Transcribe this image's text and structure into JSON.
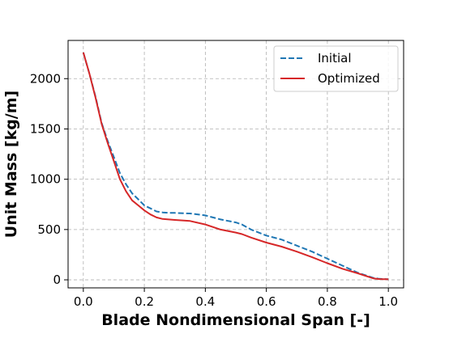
{
  "chart_data": {
    "type": "line",
    "xlabel": "Blade Nondimensional Span [-]",
    "ylabel": "Unit Mass [kg/m]",
    "xlim": [
      -0.05,
      1.05
    ],
    "ylim": [
      -80,
      2380
    ],
    "xticks": [
      0.0,
      0.2,
      0.4,
      0.6,
      0.8,
      1.0
    ],
    "xtick_labels": [
      "0.0",
      "0.2",
      "0.4",
      "0.6",
      "0.8",
      "1.0"
    ],
    "yticks": [
      0,
      500,
      1000,
      1500,
      2000
    ],
    "ytick_labels": [
      "0",
      "500",
      "1000",
      "1500",
      "2000"
    ],
    "grid": true,
    "legend_position": "top-right",
    "series": [
      {
        "name": "Initial",
        "color": "#1f77b4",
        "style": "dashed",
        "x": [
          0.0,
          0.02,
          0.04,
          0.06,
          0.08,
          0.1,
          0.12,
          0.14,
          0.16,
          0.18,
          0.2,
          0.22,
          0.24,
          0.26,
          0.28,
          0.3,
          0.35,
          0.4,
          0.45,
          0.5,
          0.52,
          0.55,
          0.6,
          0.65,
          0.7,
          0.75,
          0.8,
          0.85,
          0.9,
          0.95,
          0.97,
          1.0
        ],
        "y": [
          2260,
          2050,
          1820,
          1560,
          1380,
          1220,
          1060,
          950,
          860,
          800,
          740,
          710,
          680,
          670,
          665,
          665,
          660,
          640,
          600,
          570,
          550,
          500,
          440,
          400,
          340,
          280,
          210,
          140,
          70,
          20,
          10,
          5
        ]
      },
      {
        "name": "Optimized",
        "color": "#d62728",
        "style": "solid",
        "x": [
          0.0,
          0.02,
          0.04,
          0.06,
          0.08,
          0.1,
          0.12,
          0.14,
          0.16,
          0.18,
          0.2,
          0.22,
          0.24,
          0.26,
          0.28,
          0.3,
          0.35,
          0.4,
          0.45,
          0.5,
          0.52,
          0.55,
          0.6,
          0.65,
          0.7,
          0.75,
          0.8,
          0.85,
          0.9,
          0.95,
          0.97,
          1.0
        ],
        "y": [
          2260,
          2050,
          1810,
          1550,
          1360,
          1180,
          1000,
          880,
          790,
          740,
          690,
          650,
          620,
          605,
          600,
          595,
          585,
          550,
          500,
          470,
          455,
          420,
          370,
          330,
          280,
          225,
          165,
          110,
          65,
          15,
          8,
          5
        ]
      }
    ]
  }
}
